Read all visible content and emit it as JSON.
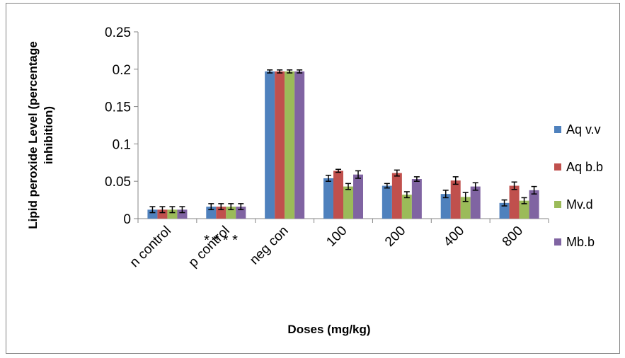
{
  "chart_data": {
    "type": "bar",
    "title": "",
    "xlabel": "Doses  (mg/kg)",
    "ylabel_lines": [
      "Lipid peroxide Level (percentage",
      "inhibition)"
    ],
    "categories": [
      "n control",
      "p control",
      "neg con",
      "100",
      "200",
      "400",
      "800"
    ],
    "series": [
      {
        "name": "Aq v.v",
        "color": "#4F81BD",
        "values": [
          0.012,
          0.016,
          0.197,
          0.054,
          0.044,
          0.033,
          0.021
        ],
        "errors": [
          0.004,
          0.004,
          0.002,
          0.004,
          0.003,
          0.005,
          0.004
        ]
      },
      {
        "name": "Aq b.b",
        "color": "#C0504D",
        "values": [
          0.012,
          0.016,
          0.197,
          0.064,
          0.061,
          0.051,
          0.044
        ],
        "errors": [
          0.004,
          0.004,
          0.002,
          0.002,
          0.004,
          0.005,
          0.005
        ]
      },
      {
        "name": "Mv.d",
        "color": "#9BBB59",
        "values": [
          0.012,
          0.016,
          0.197,
          0.043,
          0.032,
          0.029,
          0.024
        ],
        "errors": [
          0.004,
          0.004,
          0.002,
          0.004,
          0.004,
          0.006,
          0.004
        ]
      },
      {
        "name": "Mb.b",
        "color": "#8064A2",
        "values": [
          0.012,
          0.016,
          0.197,
          0.059,
          0.053,
          0.043,
          0.038
        ],
        "errors": [
          0.004,
          0.004,
          0.002,
          0.005,
          0.003,
          0.005,
          0.005
        ]
      }
    ],
    "ylim": [
      0,
      0.25
    ],
    "yticks": [
      "0",
      "0.05",
      "0.1",
      "0.15",
      "0.2",
      "0.25"
    ],
    "grid": false,
    "legend_position": "right",
    "annotation": "* * * *"
  }
}
